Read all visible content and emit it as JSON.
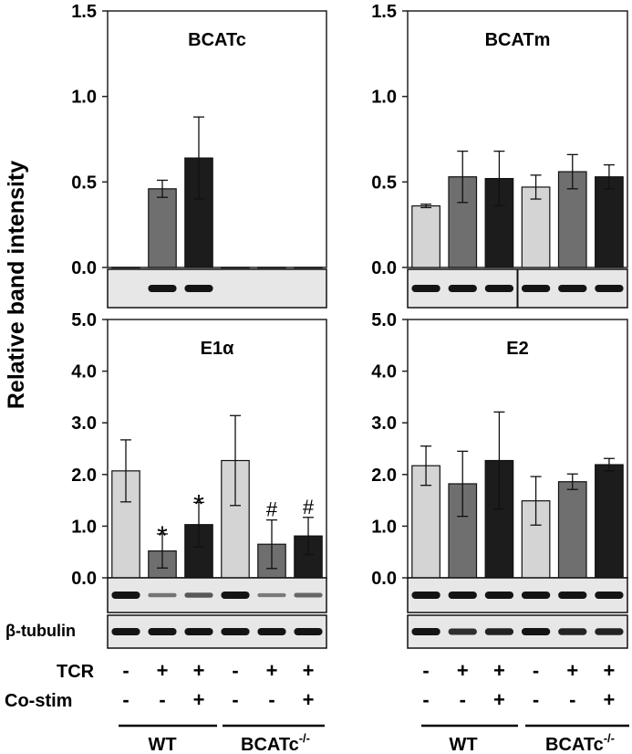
{
  "y_axis_label": "Relative band intensity",
  "colors": {
    "group1": "#d4d4d4",
    "group2": "#6f6f6f",
    "group3": "#1c1c1c",
    "blot_bg": "#e7e7e7",
    "band": "#141414"
  },
  "chart_data": [
    {
      "type": "bar",
      "title": "BCATc",
      "ylim": [
        0,
        1.5
      ],
      "ticks": [
        "0.0",
        "0.5",
        "1.0",
        "1.5"
      ],
      "categories": [
        "WT -/-",
        "WT TCR",
        "WT TCR+Co-stim",
        "BCATc-/- -/-",
        "BCATc-/- TCR",
        "BCATc-/- TCR+Co-stim"
      ],
      "values": [
        0.0,
        0.46,
        0.64,
        0.0,
        0.0,
        0.0
      ],
      "errors": [
        0.0,
        0.05,
        0.24,
        0.0,
        0.0,
        0.0
      ],
      "annotations": [
        "",
        "",
        "",
        "",
        "",
        ""
      ]
    },
    {
      "type": "bar",
      "title": "BCATm",
      "ylim": [
        0,
        1.5
      ],
      "ticks": [
        "0.0",
        "0.5",
        "1.0",
        "1.5"
      ],
      "categories": [
        "WT -/-",
        "WT TCR",
        "WT TCR+Co-stim",
        "BCATc-/- -/-",
        "BCATc-/- TCR",
        "BCATc-/- TCR+Co-stim"
      ],
      "values": [
        0.36,
        0.53,
        0.52,
        0.47,
        0.56,
        0.53
      ],
      "errors": [
        0.01,
        0.15,
        0.16,
        0.07,
        0.1,
        0.07
      ],
      "annotations": [
        "",
        "",
        "",
        "",
        "",
        ""
      ]
    },
    {
      "type": "bar",
      "title": "E1α",
      "ylim": [
        0,
        5.0
      ],
      "ticks": [
        "0.0",
        "1.0",
        "2.0",
        "3.0",
        "4.0",
        "5.0"
      ],
      "categories": [
        "WT -/-",
        "WT TCR",
        "WT TCR+Co-stim",
        "BCATc-/- -/-",
        "BCATc-/- TCR",
        "BCATc-/- TCR+Co-stim"
      ],
      "values": [
        2.07,
        0.52,
        1.03,
        2.27,
        0.65,
        0.81
      ],
      "errors": [
        0.6,
        0.33,
        0.43,
        0.87,
        0.47,
        0.36
      ],
      "annotations": [
        "",
        "*",
        "*",
        "",
        "#",
        "#"
      ]
    },
    {
      "type": "bar",
      "title": "E2",
      "ylim": [
        0,
        5.0
      ],
      "ticks": [
        "0.0",
        "1.0",
        "2.0",
        "3.0",
        "4.0",
        "5.0"
      ],
      "categories": [
        "WT -/-",
        "WT TCR",
        "WT TCR+Co-stim",
        "BCATc-/- -/-",
        "BCATc-/- TCR",
        "BCATc-/- TCR+Co-stim"
      ],
      "values": [
        2.17,
        1.82,
        2.27,
        1.49,
        1.86,
        2.19
      ],
      "errors": [
        0.38,
        0.63,
        0.94,
        0.47,
        0.15,
        0.12
      ],
      "annotations": [
        "",
        "",
        "",
        "",
        "",
        ""
      ]
    }
  ],
  "blots": {
    "bcatc": {
      "bands": [
        0,
        1,
        1,
        0,
        0,
        0
      ]
    },
    "bcatm": {
      "bands": [
        1,
        1,
        1,
        1,
        1,
        1
      ]
    },
    "e1a": {
      "bands": [
        1,
        0.3,
        0.5,
        1,
        0.25,
        0.4
      ]
    },
    "tubulin_left": {
      "label": "β-tubulin",
      "bands": [
        1,
        1,
        1,
        1,
        1,
        1
      ]
    },
    "e2": {
      "bands": [
        1,
        1,
        1,
        1,
        1,
        1
      ]
    },
    "tubulin_right": {
      "bands": [
        1,
        0.8,
        0.9,
        1,
        0.9,
        0.9
      ]
    }
  },
  "conditions": {
    "tcr_label": "TCR",
    "costim_label": "Co-stim",
    "tcr": [
      "-",
      "+",
      "+",
      "-",
      "+",
      "+"
    ],
    "costim": [
      "-",
      "-",
      "+",
      "-",
      "-",
      "+"
    ]
  },
  "groups": {
    "wt": "WT",
    "ko_main": "BCATc",
    "ko_sup": "-/-"
  }
}
